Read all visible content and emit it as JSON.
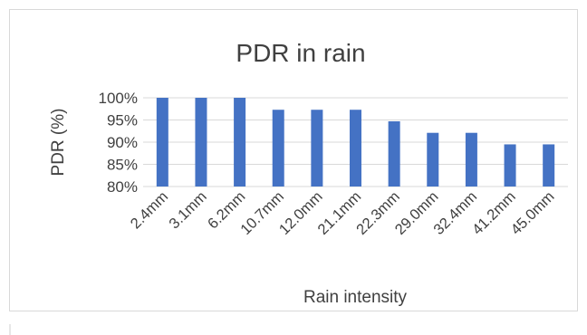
{
  "chart_data": {
    "type": "bar",
    "title": "PDR in rain",
    "xlabel": "Rain intensity",
    "ylabel": "PDR (%)",
    "categories": [
      "2.4mm",
      "3.1mm",
      "6.2mm",
      "10.7mm",
      "12.0mm",
      "21.1mm",
      "22.3mm",
      "29.0mm",
      "32.4mm",
      "41.2mm",
      "45.0mm"
    ],
    "values": [
      100,
      100,
      100,
      97.3,
      97.3,
      97.3,
      94.7,
      92.1,
      92.1,
      89.5,
      89.5
    ],
    "ylim": [
      80,
      100
    ],
    "yticks": [
      "80%",
      "85%",
      "90%",
      "95%",
      "100%"
    ],
    "ytick_values": [
      80,
      85,
      90,
      95,
      100
    ],
    "grid": true,
    "legend": "none",
    "bar_color": "#4472c4",
    "grid_color": "#d9d9d9"
  }
}
